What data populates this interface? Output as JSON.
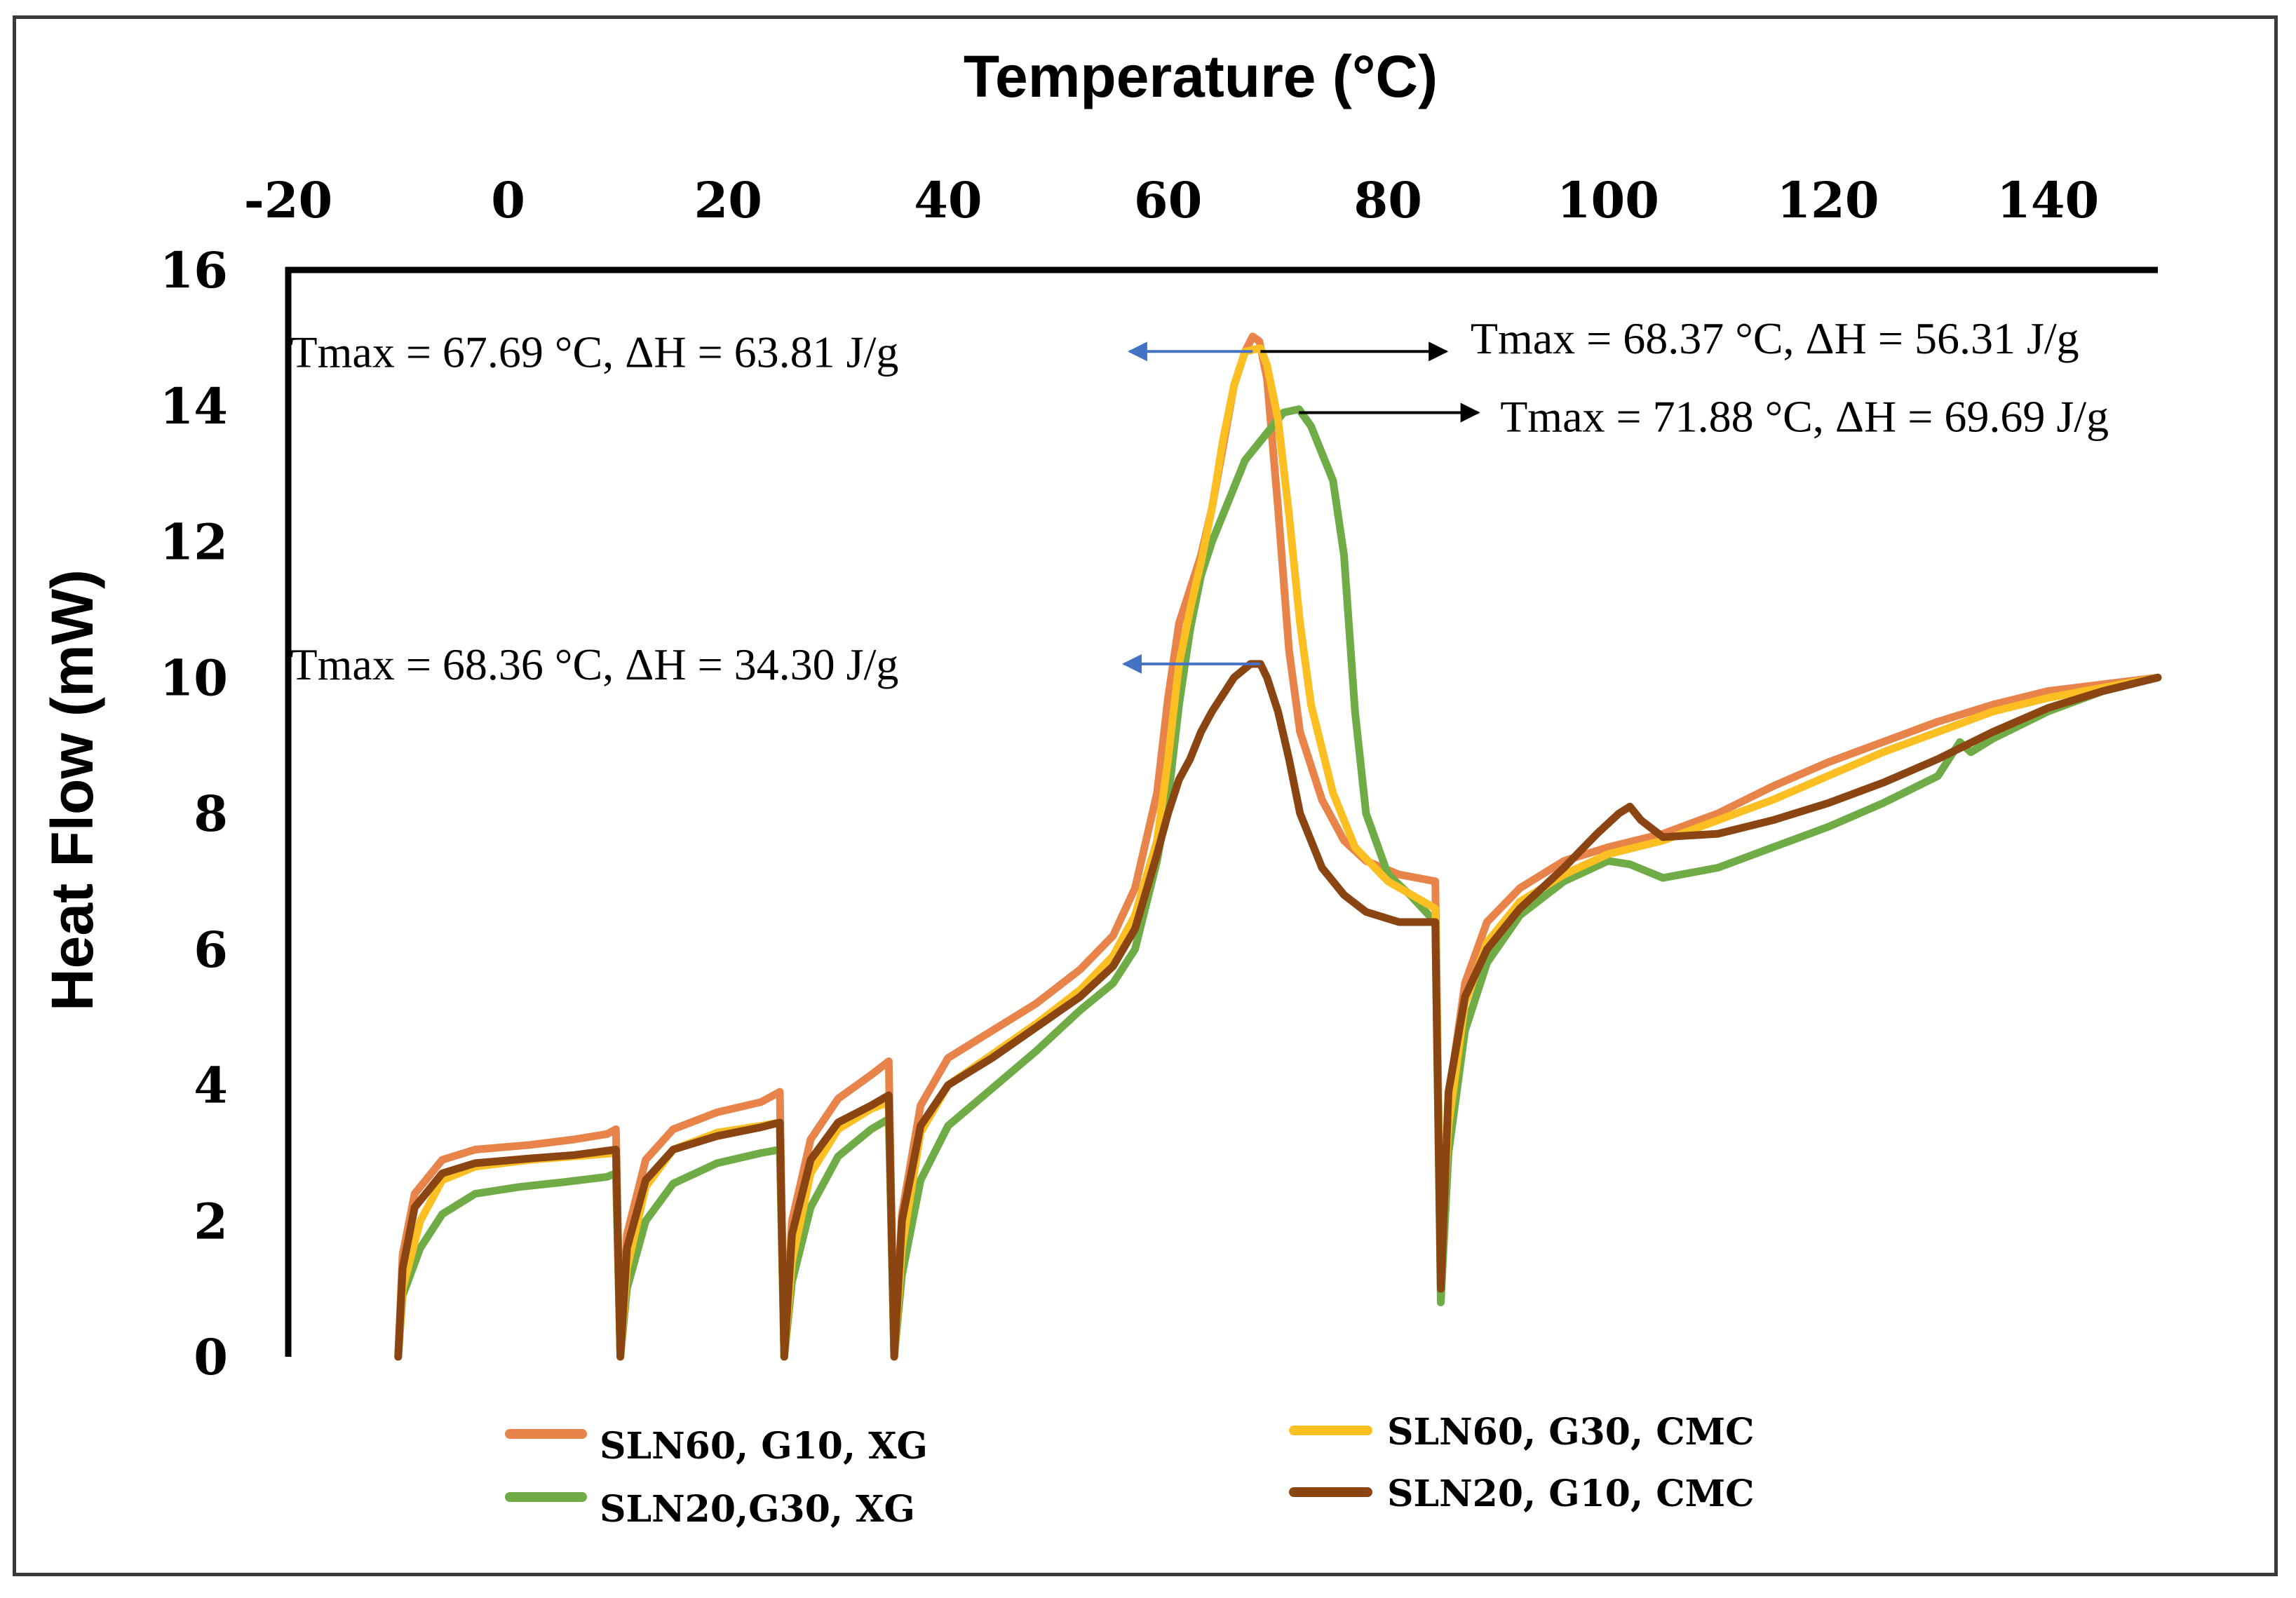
{
  "chart_data": {
    "type": "line",
    "title": "",
    "xlabel": "Temperature (°C)",
    "ylabel": "Heat Flow (mW)",
    "xlim": [
      -20,
      150
    ],
    "ylim": [
      0,
      16
    ],
    "x_ticks": [
      "-20",
      "0",
      "20",
      "40",
      "60",
      "80",
      "100",
      "120",
      "140"
    ],
    "y_ticks": [
      "0",
      "2",
      "4",
      "6",
      "8",
      "10",
      "12",
      "14",
      "16"
    ],
    "grid": false,
    "legend_position": "bottom",
    "series": [
      {
        "name": "SLN60, G10, XG",
        "color": "#e8834a",
        "points": [
          [
            -10,
            0
          ],
          [
            -9.6,
            1.5
          ],
          [
            -8.5,
            2.4
          ],
          [
            -6,
            2.9
          ],
          [
            -3,
            3.05
          ],
          [
            2,
            3.12
          ],
          [
            6,
            3.2
          ],
          [
            9,
            3.28
          ],
          [
            9.8,
            3.35
          ],
          [
            10.2,
            0
          ],
          [
            10.8,
            1.8
          ],
          [
            12.5,
            2.9
          ],
          [
            15,
            3.35
          ],
          [
            19,
            3.6
          ],
          [
            23,
            3.75
          ],
          [
            24.7,
            3.9
          ],
          [
            25.1,
            0
          ],
          [
            25.8,
            2.0
          ],
          [
            27.5,
            3.2
          ],
          [
            30,
            3.8
          ],
          [
            33,
            4.15
          ],
          [
            34.6,
            4.35
          ],
          [
            35.1,
            0
          ],
          [
            35.8,
            2.1
          ],
          [
            37.5,
            3.7
          ],
          [
            40,
            4.4
          ],
          [
            44,
            4.8
          ],
          [
            48,
            5.2
          ],
          [
            52,
            5.7
          ],
          [
            55,
            6.2
          ],
          [
            57,
            6.9
          ],
          [
            59,
            8.3
          ],
          [
            60,
            9.7
          ],
          [
            61,
            10.8
          ],
          [
            62,
            11.3
          ],
          [
            63,
            11.8
          ],
          [
            64,
            12.5
          ],
          [
            65,
            13.4
          ],
          [
            66,
            14.3
          ],
          [
            67,
            14.8
          ],
          [
            67.7,
            15.02
          ],
          [
            68.3,
            14.95
          ],
          [
            69,
            14.4
          ],
          [
            70,
            12.5
          ],
          [
            71,
            10.4
          ],
          [
            72,
            9.2
          ],
          [
            74,
            8.2
          ],
          [
            76,
            7.6
          ],
          [
            78,
            7.3
          ],
          [
            81,
            7.1
          ],
          [
            84.3,
            7.0
          ],
          [
            84.8,
            1.2
          ],
          [
            85.5,
            3.8
          ],
          [
            87,
            5.5
          ],
          [
            89,
            6.4
          ],
          [
            92,
            6.9
          ],
          [
            96,
            7.3
          ],
          [
            100,
            7.5
          ],
          [
            105,
            7.7
          ],
          [
            110,
            8.0
          ],
          [
            115,
            8.4
          ],
          [
            120,
            8.75
          ],
          [
            125,
            9.05
          ],
          [
            130,
            9.35
          ],
          [
            135,
            9.6
          ],
          [
            140,
            9.8
          ],
          [
            145,
            9.9
          ],
          [
            150,
            10.0
          ]
        ]
      },
      {
        "name": "SLN20,G30, XG",
        "color": "#6fac46",
        "points": [
          [
            -10,
            0
          ],
          [
            -9.6,
            0.9
          ],
          [
            -8,
            1.6
          ],
          [
            -6,
            2.1
          ],
          [
            -3,
            2.4
          ],
          [
            1,
            2.5
          ],
          [
            5,
            2.57
          ],
          [
            9,
            2.65
          ],
          [
            9.8,
            2.7
          ],
          [
            10.2,
            0
          ],
          [
            10.8,
            1.0
          ],
          [
            12.5,
            2.0
          ],
          [
            15,
            2.55
          ],
          [
            19,
            2.85
          ],
          [
            23,
            3.0
          ],
          [
            24.7,
            3.05
          ],
          [
            25.1,
            0
          ],
          [
            25.8,
            1.1
          ],
          [
            27.5,
            2.2
          ],
          [
            30,
            2.95
          ],
          [
            33,
            3.35
          ],
          [
            34.6,
            3.5
          ],
          [
            35.1,
            0
          ],
          [
            35.8,
            1.2
          ],
          [
            37.5,
            2.6
          ],
          [
            40,
            3.4
          ],
          [
            44,
            3.95
          ],
          [
            48,
            4.5
          ],
          [
            52,
            5.1
          ],
          [
            55,
            5.5
          ],
          [
            57,
            6.0
          ],
          [
            59,
            7.3
          ],
          [
            60,
            8.2
          ],
          [
            61,
            9.6
          ],
          [
            62,
            10.7
          ],
          [
            63,
            11.5
          ],
          [
            64,
            12.0
          ],
          [
            65,
            12.4
          ],
          [
            67,
            13.2
          ],
          [
            69,
            13.6
          ],
          [
            70.5,
            13.9
          ],
          [
            71.9,
            13.95
          ],
          [
            73,
            13.7
          ],
          [
            74,
            13.3
          ],
          [
            75,
            12.9
          ],
          [
            76,
            11.8
          ],
          [
            77,
            9.5
          ],
          [
            78,
            8.0
          ],
          [
            80,
            7.1
          ],
          [
            82,
            6.8
          ],
          [
            84.3,
            6.4
          ],
          [
            84.8,
            0.8
          ],
          [
            85.5,
            3.0
          ],
          [
            87,
            4.8
          ],
          [
            89,
            5.8
          ],
          [
            92,
            6.5
          ],
          [
            96,
            7.0
          ],
          [
            100,
            7.3
          ],
          [
            102,
            7.25
          ],
          [
            105,
            7.05
          ],
          [
            110,
            7.2
          ],
          [
            115,
            7.5
          ],
          [
            120,
            7.8
          ],
          [
            125,
            8.15
          ],
          [
            130,
            8.55
          ],
          [
            132,
            9.05
          ],
          [
            133,
            8.9
          ],
          [
            135,
            9.1
          ],
          [
            140,
            9.5
          ],
          [
            145,
            9.8
          ],
          [
            150,
            10.0
          ]
        ]
      },
      {
        "name": "SLN60, G30, CMC",
        "color": "#fbbf21",
        "points": [
          [
            -10,
            0
          ],
          [
            -9.6,
            1.0
          ],
          [
            -8,
            2.0
          ],
          [
            -6,
            2.6
          ],
          [
            -3,
            2.8
          ],
          [
            2,
            2.9
          ],
          [
            6,
            2.95
          ],
          [
            9.8,
            3.0
          ],
          [
            10.2,
            0
          ],
          [
            10.8,
            1.3
          ],
          [
            12.5,
            2.5
          ],
          [
            15,
            3.05
          ],
          [
            19,
            3.3
          ],
          [
            23,
            3.4
          ],
          [
            24.7,
            3.45
          ],
          [
            25.1,
            0
          ],
          [
            25.8,
            1.4
          ],
          [
            27.5,
            2.7
          ],
          [
            30,
            3.35
          ],
          [
            33,
            3.65
          ],
          [
            34.6,
            3.75
          ],
          [
            35.1,
            0
          ],
          [
            35.8,
            1.6
          ],
          [
            37.5,
            3.3
          ],
          [
            40,
            4.0
          ],
          [
            44,
            4.45
          ],
          [
            48,
            4.9
          ],
          [
            52,
            5.4
          ],
          [
            55,
            5.9
          ],
          [
            57,
            6.5
          ],
          [
            59,
            7.6
          ],
          [
            60,
            8.8
          ],
          [
            61,
            10.2
          ],
          [
            62,
            11.0
          ],
          [
            63,
            11.7
          ],
          [
            64,
            12.5
          ],
          [
            65,
            13.5
          ],
          [
            66,
            14.3
          ],
          [
            67,
            14.8
          ],
          [
            68.4,
            14.85
          ],
          [
            69,
            14.6
          ],
          [
            70,
            13.8
          ],
          [
            71,
            12.4
          ],
          [
            72,
            10.8
          ],
          [
            73,
            9.6
          ],
          [
            75,
            8.3
          ],
          [
            77,
            7.5
          ],
          [
            80,
            7.0
          ],
          [
            84.3,
            6.6
          ],
          [
            84.8,
            1.5
          ],
          [
            85.5,
            3.4
          ],
          [
            87,
            5.2
          ],
          [
            89,
            6.1
          ],
          [
            92,
            6.7
          ],
          [
            96,
            7.1
          ],
          [
            100,
            7.4
          ],
          [
            105,
            7.6
          ],
          [
            110,
            7.9
          ],
          [
            115,
            8.2
          ],
          [
            120,
            8.55
          ],
          [
            125,
            8.9
          ],
          [
            130,
            9.2
          ],
          [
            135,
            9.5
          ],
          [
            140,
            9.7
          ],
          [
            145,
            9.85
          ],
          [
            150,
            10.0
          ]
        ]
      },
      {
        "name": "SLN20, G10, CMC",
        "color": "#8b4513",
        "points": [
          [
            -10,
            0
          ],
          [
            -9.6,
            1.3
          ],
          [
            -8.5,
            2.2
          ],
          [
            -6,
            2.7
          ],
          [
            -3,
            2.85
          ],
          [
            2,
            2.92
          ],
          [
            6,
            2.97
          ],
          [
            9.8,
            3.05
          ],
          [
            10.2,
            0
          ],
          [
            10.8,
            1.6
          ],
          [
            12.5,
            2.6
          ],
          [
            15,
            3.05
          ],
          [
            19,
            3.25
          ],
          [
            23,
            3.38
          ],
          [
            24.7,
            3.45
          ],
          [
            25.1,
            0
          ],
          [
            25.8,
            1.8
          ],
          [
            27.5,
            2.9
          ],
          [
            30,
            3.45
          ],
          [
            33,
            3.7
          ],
          [
            34.6,
            3.85
          ],
          [
            35.1,
            0
          ],
          [
            35.8,
            2.0
          ],
          [
            37.5,
            3.4
          ],
          [
            40,
            4.0
          ],
          [
            44,
            4.4
          ],
          [
            48,
            4.85
          ],
          [
            52,
            5.3
          ],
          [
            55,
            5.75
          ],
          [
            57,
            6.3
          ],
          [
            59,
            7.4
          ],
          [
            60,
            8.0
          ],
          [
            61,
            8.5
          ],
          [
            62,
            8.8
          ],
          [
            63,
            9.2
          ],
          [
            64,
            9.5
          ],
          [
            66,
            10.0
          ],
          [
            67.5,
            10.2
          ],
          [
            68.4,
            10.2
          ],
          [
            69,
            10.0
          ],
          [
            70,
            9.5
          ],
          [
            71,
            8.8
          ],
          [
            72,
            8.0
          ],
          [
            74,
            7.2
          ],
          [
            76,
            6.8
          ],
          [
            78,
            6.55
          ],
          [
            81,
            6.4
          ],
          [
            84.3,
            6.4
          ],
          [
            84.8,
            1.0
          ],
          [
            85.5,
            3.9
          ],
          [
            87,
            5.3
          ],
          [
            89,
            6.0
          ],
          [
            92,
            6.6
          ],
          [
            96,
            7.2
          ],
          [
            99,
            7.7
          ],
          [
            101,
            8.0
          ],
          [
            102,
            8.1
          ],
          [
            103,
            7.9
          ],
          [
            105,
            7.65
          ],
          [
            110,
            7.7
          ],
          [
            115,
            7.9
          ],
          [
            120,
            8.15
          ],
          [
            125,
            8.45
          ],
          [
            130,
            8.8
          ],
          [
            135,
            9.2
          ],
          [
            140,
            9.55
          ],
          [
            145,
            9.8
          ],
          [
            150,
            10.0
          ]
        ]
      }
    ],
    "annotations": [
      {
        "text": "Tmax = 67.69 °C, ΔH = 63.81 J/g",
        "x_from": 67.7,
        "x_to": 56.5,
        "y": 14.8,
        "text_x": 35.5,
        "text_y": 14.8,
        "anchor": "end",
        "arrow_color": "#4472c4"
      },
      {
        "text": "Tmax = 68.37 °C, ΔH = 56.31 J/g",
        "x_from": 68.4,
        "x_to": 85.3,
        "y": 14.8,
        "text_x": 87.5,
        "text_y": 15.0,
        "anchor": "start",
        "arrow_color": "#000000"
      },
      {
        "text": "Tmax = 71.88 °C, ΔH = 69.69 J/g",
        "x_from": 71.9,
        "x_to": 88.2,
        "y": 13.9,
        "text_x": 90.2,
        "text_y": 13.85,
        "anchor": "start",
        "arrow_color": "#000000"
      },
      {
        "text": "Tmax = 68.36 °C, ΔH = 34.30 J/g",
        "x_from": 68.4,
        "x_to": 56.0,
        "y": 10.2,
        "text_x": 35.5,
        "text_y": 10.2,
        "anchor": "end",
        "arrow_color": "#4472c4"
      }
    ]
  }
}
